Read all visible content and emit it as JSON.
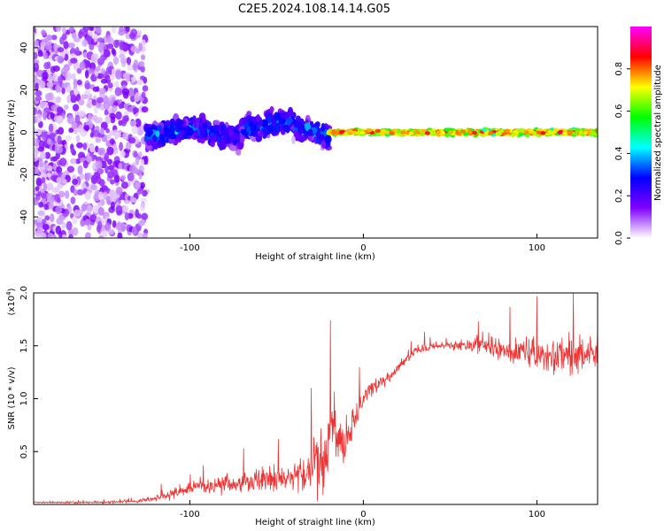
{
  "title": "C2E5.2024.108.14.14.G05",
  "chart_data": [
    {
      "type": "heatmap",
      "xlabel": "Height of straight line (km)",
      "ylabel": "Frequency (Hz)",
      "xlim": [
        -190,
        135
      ],
      "ylim": [
        -50,
        50
      ],
      "xticks": [
        -100,
        0,
        100
      ],
      "yticks": [
        -40,
        -20,
        0,
        20,
        40
      ],
      "grid": false,
      "colorbar": {
        "label": "Normalized spectral amplitude",
        "range": [
          0.0,
          1.0
        ],
        "ticks": [
          "0.0",
          "0.2",
          "0.4",
          "0.6",
          "0.8"
        ],
        "colormap": [
          "#ffffff",
          "#8000ff",
          "#0000ff",
          "#00ffff",
          "#00ff00",
          "#ffff00",
          "#ff0000",
          "#ff00ff"
        ]
      },
      "regions": [
        {
          "x": [
            -190,
            -125
          ],
          "freq_center": 0,
          "freq_spread": 50,
          "amplitude": 0.1,
          "description_level": "scattered noise"
        },
        {
          "x": [
            -125,
            -20
          ],
          "freq_center": 0,
          "freq_spread": 10,
          "amplitude": 0.3
        },
        {
          "x": [
            -20,
            135
          ],
          "freq_center": 0,
          "freq_spread": 2,
          "amplitude": 0.8
        }
      ]
    },
    {
      "type": "line",
      "xlabel": "Height of straight line (km)",
      "ylabel": "SNR (10 * v/v)",
      "ylabel_scale": "(x10",
      "ylabel_exp": "4",
      "ylabel_close": ")",
      "xlim": [
        -190,
        135
      ],
      "ylim": [
        0,
        20000
      ],
      "xticks": [
        -100,
        0,
        100
      ],
      "yticks": [
        {
          "value": 5000,
          "label": "0.5"
        },
        {
          "value": 10000,
          "label": "1.0"
        },
        {
          "value": 15000,
          "label": "1.5"
        },
        {
          "value": 20000,
          "label": "2.0"
        }
      ],
      "grid": false,
      "color": "#ee3333",
      "trend": {
        "x": [
          -190,
          -150,
          -130,
          -120,
          -110,
          -100,
          -80,
          -60,
          -40,
          -30,
          -22,
          -18,
          -15,
          -10,
          -5,
          0,
          5,
          10,
          15,
          20,
          30,
          40,
          50,
          60,
          70,
          80,
          90,
          100,
          110,
          120,
          135
        ],
        "y": [
          200,
          200,
          300,
          600,
          1000,
          1500,
          2000,
          2200,
          2300,
          3000,
          5000,
          8000,
          6000,
          5500,
          8000,
          10000,
          11000,
          11500,
          12000,
          13000,
          14500,
          15000,
          15000,
          15000,
          15000,
          14500,
          14500,
          14000,
          14000,
          14000,
          14500
        ]
      },
      "noise": {
        "x": [
          -190,
          -130,
          -120,
          -100,
          -60,
          -40,
          -25,
          -15,
          -5,
          0,
          20,
          50,
          80,
          110,
          135
        ],
        "amp": [
          100,
          200,
          500,
          1200,
          1800,
          2000,
          5000,
          4000,
          2500,
          1500,
          800,
          600,
          2000,
          3000,
          3000
        ]
      }
    }
  ]
}
